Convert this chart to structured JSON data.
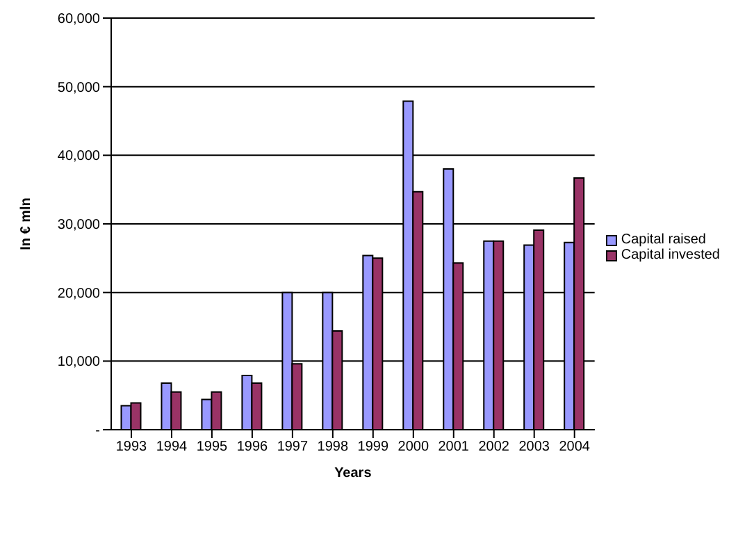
{
  "chart_data": {
    "type": "bar",
    "xlabel": "Years",
    "ylabel": "In € mln",
    "categories": [
      "1993",
      "1994",
      "1995",
      "1996",
      "1997",
      "1998",
      "1999",
      "2000",
      "2001",
      "2002",
      "2003",
      "2004"
    ],
    "series": [
      {
        "name": "Capital raised",
        "color": "#9999ff",
        "values": [
          3500,
          6800,
          4400,
          7900,
          20000,
          20000,
          25400,
          47900,
          38000,
          27500,
          26900,
          27300
        ]
      },
      {
        "name": "Capital invested",
        "color": "#993366",
        "values": [
          3900,
          5500,
          5500,
          6800,
          9600,
          14400,
          25000,
          34700,
          24300,
          27500,
          29100,
          36700
        ]
      }
    ],
    "ylim": [
      0,
      60000
    ],
    "yticks": [
      {
        "value": 0,
        "label": "-"
      },
      {
        "value": 10000,
        "label": "10,000"
      },
      {
        "value": 20000,
        "label": "20,000"
      },
      {
        "value": 30000,
        "label": "30,000"
      },
      {
        "value": 40000,
        "label": "40,000"
      },
      {
        "value": 50000,
        "label": "50,000"
      },
      {
        "value": 60000,
        "label": "60,000"
      }
    ],
    "grid": "y",
    "legend": "right"
  }
}
